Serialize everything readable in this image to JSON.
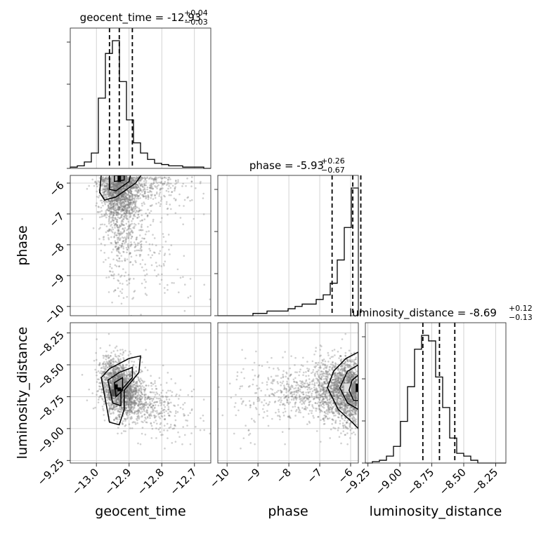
{
  "chart_data": {
    "type": "corner",
    "parameters": [
      "geocent_time",
      "phase",
      "luminosity_distance"
    ],
    "titles": [
      {
        "name": "geocent_time",
        "median": "-12.93",
        "plus": "0.04",
        "minus": "0.03"
      },
      {
        "name": "phase",
        "median": "-5.93",
        "plus": "0.26",
        "minus": "0.67"
      },
      {
        "name": "luminosity_distance",
        "median": "-8.69",
        "plus": "0.12",
        "minus": "0.13"
      }
    ],
    "axis_labels": {
      "x": [
        "geocent_time",
        "phase",
        "luminosity_distance"
      ],
      "y": [
        "phase",
        "luminosity_distance"
      ]
    },
    "ranges": {
      "geocent_time": [
        -13.08,
        -12.65
      ],
      "phase": [
        -10.3,
        -5.75
      ],
      "luminosity_distance": [
        -9.27,
        -8.17
      ]
    },
    "ticks": {
      "geocent_time": [
        "−13.0",
        "−12.9",
        "−12.8",
        "−12.7"
      ],
      "phase": [
        "−10",
        "−9",
        "−8",
        "−7",
        "−6"
      ],
      "luminosity_distance": [
        "−9.25",
        "−9.00",
        "−8.75",
        "−8.50",
        "−8.25"
      ]
    },
    "tick_values": {
      "geocent_time": [
        -13.0,
        -12.9,
        -12.8,
        -12.7
      ],
      "phase": [
        -10,
        -9,
        -8,
        -7,
        -6
      ],
      "luminosity_distance": [
        -9.25,
        -9.0,
        -8.75,
        -8.5,
        -8.25
      ]
    },
    "quantiles": {
      "geocent_time": [
        -12.96,
        -12.93,
        -12.89
      ],
      "phase": [
        -6.6,
        -5.93,
        -5.67
      ],
      "luminosity_distance": [
        -8.82,
        -8.69,
        -8.57
      ]
    },
    "histograms": {
      "geocent_time": {
        "start": -13.08,
        "width": 0.0215,
        "counts": [
          1,
          2,
          5,
          12,
          55,
          90,
          100,
          68,
          38,
          20,
          12,
          7,
          4,
          3,
          2,
          2,
          1,
          1,
          1,
          0
        ]
      },
      "phase": {
        "start": -10.3,
        "width": 0.2275,
        "counts": [
          0,
          0,
          0,
          0,
          0,
          1,
          1,
          2,
          2,
          2,
          3,
          4,
          5,
          5,
          7,
          9,
          14,
          24,
          38,
          55
        ]
      },
      "luminosity_distance": {
        "start": -9.27,
        "width": 0.055,
        "counts": [
          0,
          1,
          2,
          5,
          12,
          30,
          55,
          82,
          92,
          88,
          62,
          40,
          18,
          7,
          5,
          2,
          0,
          0,
          0,
          0
        ]
      }
    },
    "grid": true
  }
}
